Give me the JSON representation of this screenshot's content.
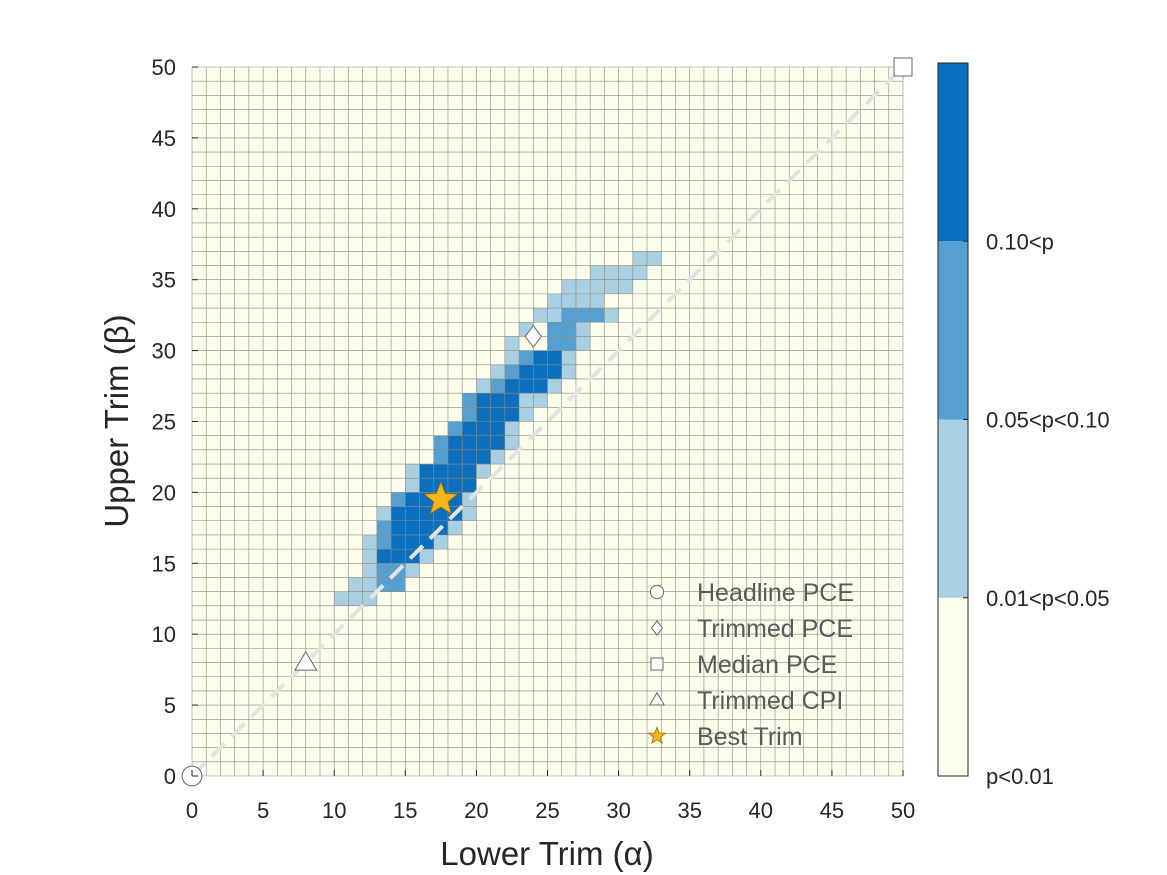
{
  "chart_data": {
    "type": "heatmap",
    "xlabel": "Lower Trim (α)",
    "ylabel": "Upper Trim (β)",
    "xlim": [
      0,
      50
    ],
    "ylim": [
      0,
      50
    ],
    "cell_step": 1,
    "xticks": [
      0,
      5,
      10,
      15,
      20,
      25,
      30,
      35,
      40,
      45,
      50
    ],
    "yticks": [
      0,
      5,
      10,
      15,
      20,
      25,
      30,
      35,
      40,
      45,
      50
    ],
    "xtick_labels": [
      "0",
      "5",
      "10",
      "15",
      "20",
      "25",
      "30",
      "35",
      "40",
      "45",
      "50"
    ],
    "ytick_labels": [
      "0",
      "5",
      "10",
      "15",
      "20",
      "25",
      "30",
      "35",
      "40",
      "45",
      "50"
    ],
    "colors": {
      "background": "#fdfdec",
      "grid": "#8a8a80",
      "class_0": "#fdfdec",
      "class_1": "#a9cfe3",
      "class_2": "#56a0d1",
      "class_3": "#0b6fbd",
      "diagonal": "#e2e2e2",
      "marker_edge": "#666666",
      "marker_fill": "#ffffff",
      "star_fill": "#f4b41a",
      "star_edge": "#a07000"
    },
    "colorbar": {
      "labels": [
        "p<0.01",
        "0.01<p<0.05",
        "0.05<p<0.10",
        "0.10<p"
      ]
    },
    "cells": [
      {
        "row": 12,
        "class": 1,
        "cols": [
          [
            10,
            12
          ]
        ]
      },
      {
        "row": 13,
        "class": 1,
        "cols": [
          [
            11,
            12
          ]
        ]
      },
      {
        "row": 13,
        "class": 2,
        "cols": [
          [
            13,
            14
          ]
        ]
      },
      {
        "row": 14,
        "class": 1,
        "cols": [
          [
            12,
            12
          ],
          [
            15,
            15
          ]
        ]
      },
      {
        "row": 14,
        "class": 2,
        "cols": [
          [
            13,
            14
          ]
        ]
      },
      {
        "row": 15,
        "class": 1,
        "cols": [
          [
            12,
            12
          ],
          [
            16,
            16
          ]
        ]
      },
      {
        "row": 15,
        "class": 3,
        "cols": [
          [
            13,
            15
          ]
        ]
      },
      {
        "row": 16,
        "class": 1,
        "cols": [
          [
            12,
            12
          ],
          [
            17,
            17
          ]
        ]
      },
      {
        "row": 16,
        "class": 2,
        "cols": [
          [
            13,
            13
          ]
        ]
      },
      {
        "row": 16,
        "class": 3,
        "cols": [
          [
            14,
            16
          ]
        ]
      },
      {
        "row": 17,
        "class": 1,
        "cols": [
          [
            18,
            18
          ]
        ]
      },
      {
        "row": 17,
        "class": 2,
        "cols": [
          [
            13,
            13
          ]
        ]
      },
      {
        "row": 17,
        "class": 3,
        "cols": [
          [
            14,
            17
          ]
        ]
      },
      {
        "row": 18,
        "class": 1,
        "cols": [
          [
            13,
            13
          ],
          [
            19,
            19
          ]
        ]
      },
      {
        "row": 18,
        "class": 3,
        "cols": [
          [
            14,
            18
          ]
        ]
      },
      {
        "row": 19,
        "class": 1,
        "cols": [
          [
            19,
            19
          ]
        ]
      },
      {
        "row": 19,
        "class": 2,
        "cols": [
          [
            14,
            14
          ]
        ]
      },
      {
        "row": 19,
        "class": 3,
        "cols": [
          [
            15,
            18
          ]
        ]
      },
      {
        "row": 20,
        "class": 1,
        "cols": [
          [
            15,
            15
          ]
        ]
      },
      {
        "row": 20,
        "class": 3,
        "cols": [
          [
            16,
            19
          ]
        ]
      },
      {
        "row": 21,
        "class": 1,
        "cols": [
          [
            15,
            15
          ],
          [
            20,
            20
          ]
        ]
      },
      {
        "row": 21,
        "class": 3,
        "cols": [
          [
            16,
            19
          ]
        ]
      },
      {
        "row": 22,
        "class": 1,
        "cols": [
          [
            21,
            21
          ]
        ]
      },
      {
        "row": 22,
        "class": 2,
        "cols": [
          [
            17,
            17
          ]
        ]
      },
      {
        "row": 22,
        "class": 3,
        "cols": [
          [
            18,
            20
          ]
        ]
      },
      {
        "row": 23,
        "class": 1,
        "cols": [
          [
            22,
            22
          ]
        ]
      },
      {
        "row": 23,
        "class": 2,
        "cols": [
          [
            17,
            17
          ]
        ]
      },
      {
        "row": 23,
        "class": 3,
        "cols": [
          [
            18,
            21
          ]
        ]
      },
      {
        "row": 24,
        "class": 1,
        "cols": [
          [
            22,
            22
          ]
        ]
      },
      {
        "row": 24,
        "class": 2,
        "cols": [
          [
            18,
            18
          ]
        ]
      },
      {
        "row": 24,
        "class": 3,
        "cols": [
          [
            19,
            21
          ]
        ]
      },
      {
        "row": 25,
        "class": 1,
        "cols": [
          [
            23,
            23
          ]
        ]
      },
      {
        "row": 25,
        "class": 2,
        "cols": [
          [
            19,
            19
          ]
        ]
      },
      {
        "row": 25,
        "class": 3,
        "cols": [
          [
            20,
            22
          ]
        ]
      },
      {
        "row": 26,
        "class": 1,
        "cols": [
          [
            23,
            24
          ]
        ]
      },
      {
        "row": 26,
        "class": 2,
        "cols": [
          [
            19,
            19
          ]
        ]
      },
      {
        "row": 26,
        "class": 3,
        "cols": [
          [
            20,
            22
          ]
        ]
      },
      {
        "row": 27,
        "class": 1,
        "cols": [
          [
            20,
            20
          ],
          [
            25,
            25
          ]
        ]
      },
      {
        "row": 27,
        "class": 2,
        "cols": [
          [
            21,
            21
          ]
        ]
      },
      {
        "row": 27,
        "class": 3,
        "cols": [
          [
            22,
            24
          ]
        ]
      },
      {
        "row": 28,
        "class": 1,
        "cols": [
          [
            21,
            21
          ],
          [
            26,
            26
          ]
        ]
      },
      {
        "row": 28,
        "class": 2,
        "cols": [
          [
            22,
            22
          ]
        ]
      },
      {
        "row": 28,
        "class": 3,
        "cols": [
          [
            23,
            25
          ]
        ]
      },
      {
        "row": 29,
        "class": 1,
        "cols": [
          [
            22,
            22
          ],
          [
            26,
            26
          ]
        ]
      },
      {
        "row": 29,
        "class": 2,
        "cols": [
          [
            23,
            23
          ]
        ]
      },
      {
        "row": 29,
        "class": 3,
        "cols": [
          [
            24,
            25
          ]
        ]
      },
      {
        "row": 30,
        "class": 1,
        "cols": [
          [
            22,
            22
          ],
          [
            27,
            27
          ]
        ]
      },
      {
        "row": 30,
        "class": 2,
        "cols": [
          [
            25,
            26
          ]
        ]
      },
      {
        "row": 31,
        "class": 1,
        "cols": [
          [
            23,
            23
          ],
          [
            27,
            27
          ]
        ]
      },
      {
        "row": 31,
        "class": 2,
        "cols": [
          [
            25,
            26
          ]
        ]
      },
      {
        "row": 32,
        "class": 1,
        "cols": [
          [
            24,
            25
          ],
          [
            29,
            29
          ]
        ]
      },
      {
        "row": 32,
        "class": 2,
        "cols": [
          [
            26,
            28
          ]
        ]
      },
      {
        "row": 33,
        "class": 1,
        "cols": [
          [
            25,
            28
          ]
        ]
      },
      {
        "row": 34,
        "class": 1,
        "cols": [
          [
            26,
            30
          ]
        ]
      },
      {
        "row": 35,
        "class": 1,
        "cols": [
          [
            28,
            31
          ]
        ]
      },
      {
        "row": 36,
        "class": 1,
        "cols": [
          [
            31,
            32
          ]
        ]
      }
    ],
    "markers": [
      {
        "label": "Headline PCE",
        "shape": "circle",
        "x": 0,
        "y": 0
      },
      {
        "label": "Trimmed PCE",
        "shape": "diamond",
        "x": 24,
        "y": 31
      },
      {
        "label": "Median PCE",
        "shape": "square",
        "x": 50,
        "y": 50
      },
      {
        "label": "Trimmed CPI",
        "shape": "triangle",
        "x": 8,
        "y": 8
      },
      {
        "label": "Best Trim",
        "shape": "star",
        "x": 17.5,
        "y": 19.5
      }
    ],
    "diagonal": {
      "from": [
        0,
        0
      ],
      "to": [
        50,
        50
      ],
      "style": "dashed"
    },
    "legend": {
      "placement": "bottom-right",
      "entries": [
        "Headline PCE",
        "Trimmed PCE",
        "Median PCE",
        "Trimmed CPI",
        "Best Trim"
      ]
    }
  }
}
